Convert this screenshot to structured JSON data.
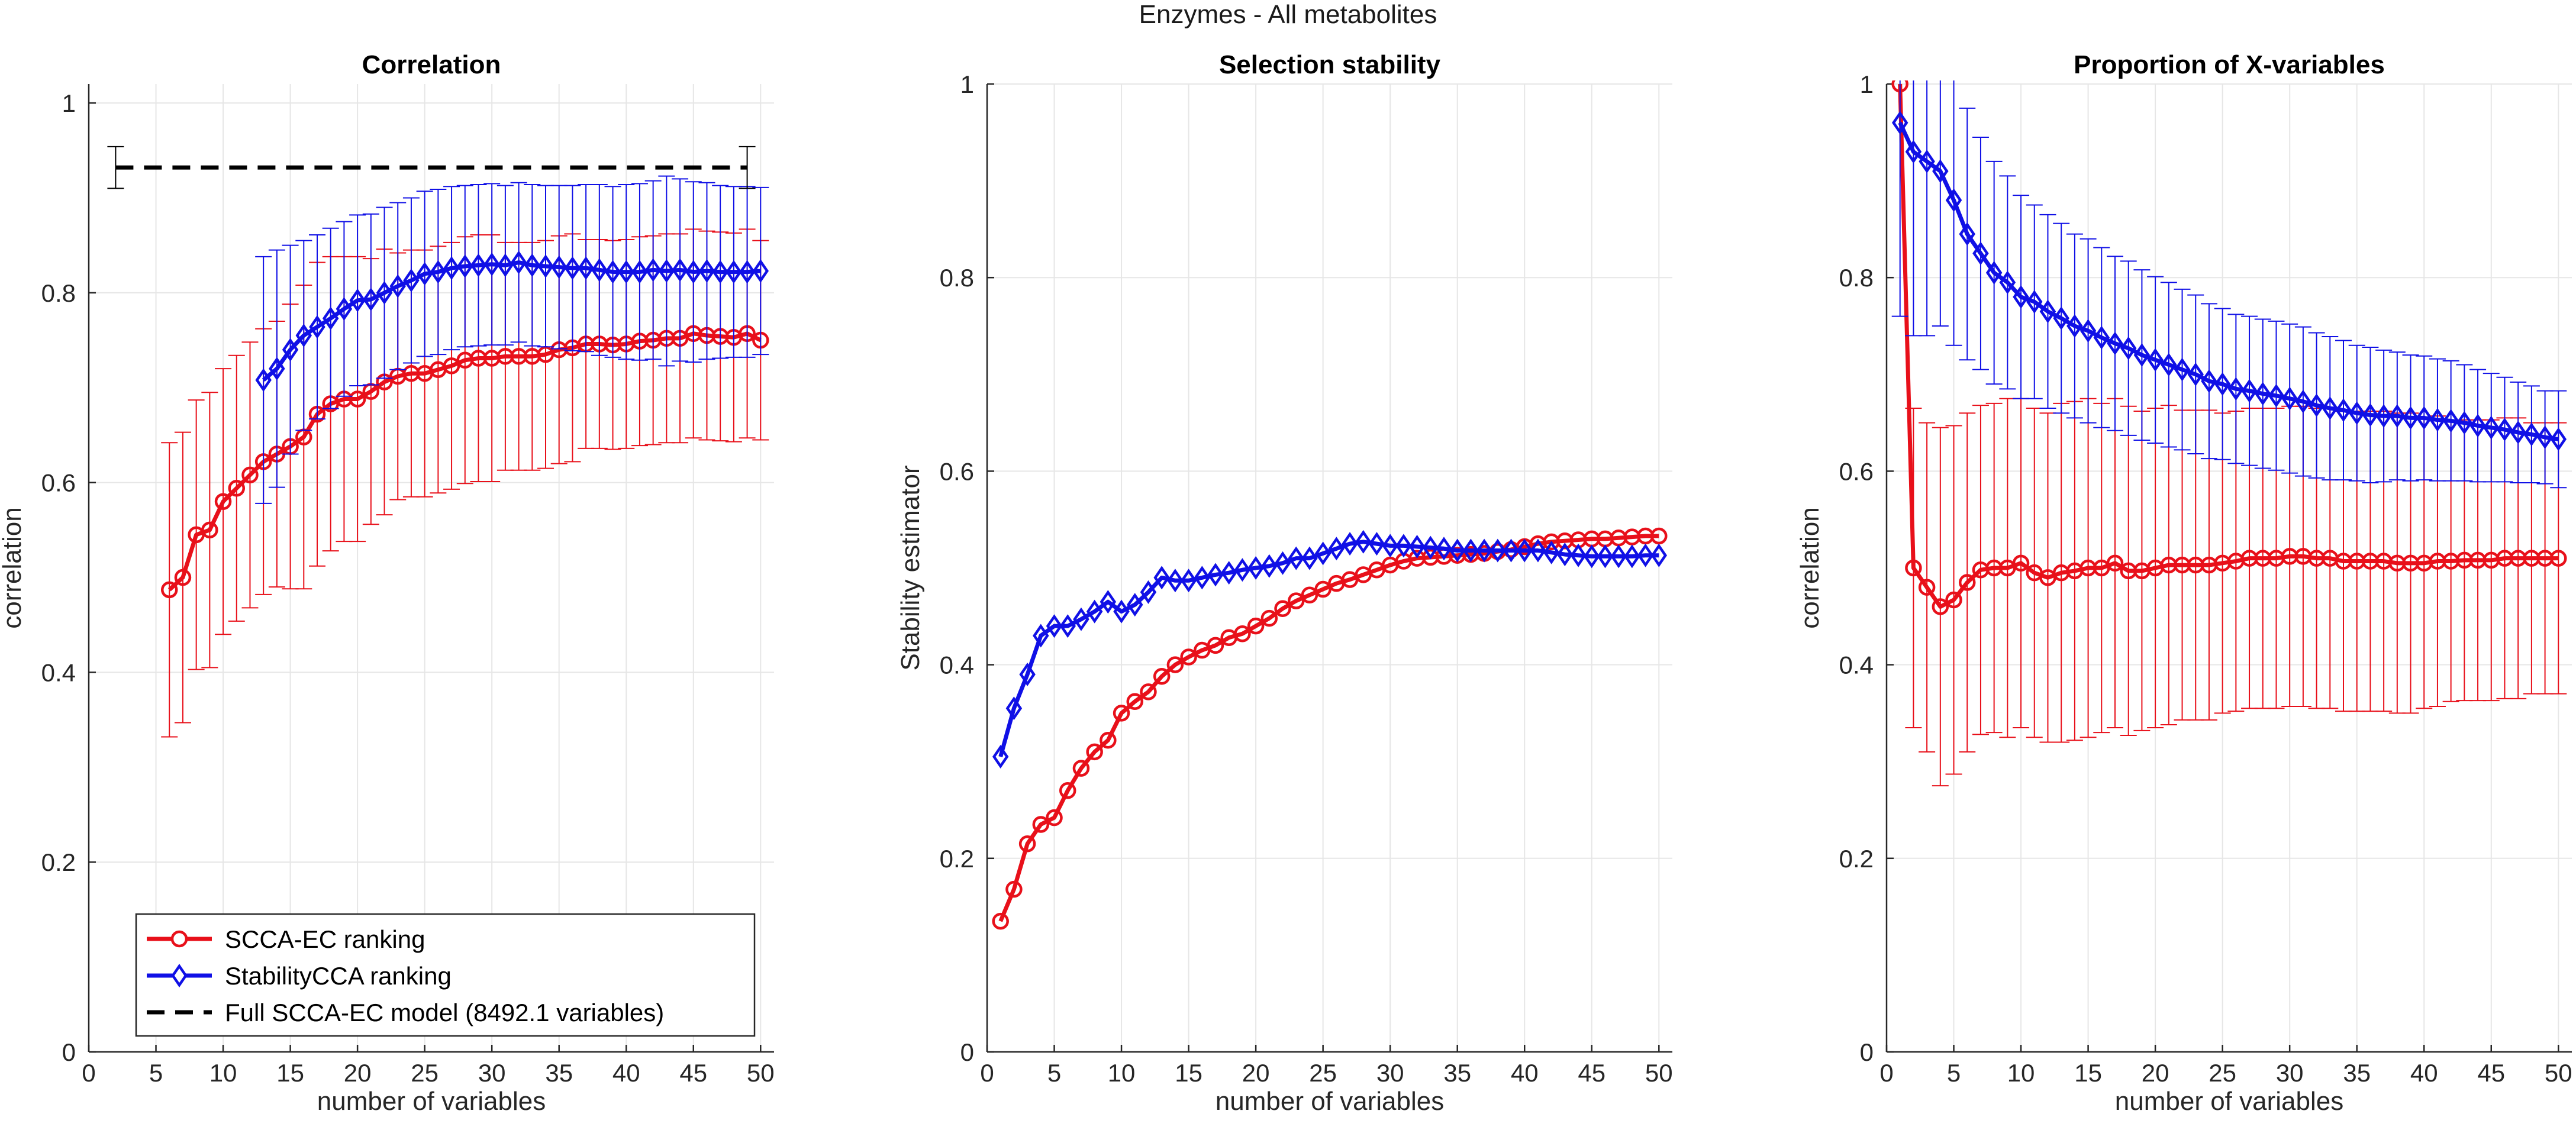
{
  "figure": {
    "title": "Enzymes - All metabolites"
  },
  "colors": {
    "red": "#e8101a",
    "blue": "#1010e6",
    "black": "#000000",
    "grid": "#e6e6e6",
    "axis": "#262626"
  },
  "chart_data": [
    {
      "type": "line",
      "title": "Correlation",
      "xlabel": "number of variables",
      "ylabel": "correlation",
      "xlim": [
        0,
        51
      ],
      "ylim": [
        0,
        1.02
      ],
      "xticks": [
        0,
        5,
        10,
        15,
        20,
        25,
        30,
        35,
        40,
        45,
        50
      ],
      "xtick_labels": [
        "0",
        "5",
        "10",
        "15",
        "20",
        "25",
        "30",
        "35",
        "40",
        "45",
        "50"
      ],
      "yticks": [
        0,
        0.2,
        0.4,
        0.6,
        0.8,
        1
      ],
      "ytick_labels": [
        "0",
        "0.2",
        "0.4",
        "0.6",
        "0.8",
        "1"
      ],
      "grid": true,
      "legend": {
        "location": "bottom-left",
        "entries": [
          "SCCA-EC ranking",
          "StabilityCCA ranking",
          "Full SCCA-EC model (8492.1 variables)"
        ]
      },
      "series": [
        {
          "name": "SCCA-EC ranking",
          "color": "#e8101a",
          "marker": "circle",
          "x": [
            6,
            7,
            8,
            9,
            10,
            11,
            12,
            13,
            14,
            15,
            16,
            17,
            18,
            19,
            20,
            21,
            22,
            23,
            24,
            25,
            26,
            27,
            28,
            29,
            30,
            31,
            32,
            33,
            34,
            35,
            36,
            37,
            38,
            39,
            40,
            41,
            42,
            43,
            44,
            45,
            46,
            47,
            48,
            49,
            50
          ],
          "y": [
            0.487,
            0.5,
            0.545,
            0.55,
            0.58,
            0.594,
            0.608,
            0.622,
            0.63,
            0.638,
            0.648,
            0.672,
            0.683,
            0.688,
            0.688,
            0.696,
            0.706,
            0.712,
            0.715,
            0.715,
            0.719,
            0.723,
            0.729,
            0.731,
            0.731,
            0.733,
            0.733,
            0.733,
            0.735,
            0.74,
            0.742,
            0.746,
            0.746,
            0.745,
            0.746,
            0.749,
            0.75,
            0.752,
            0.752,
            0.757,
            0.755,
            0.754,
            0.753,
            0.757,
            0.75
          ],
          "err": [
            0.155,
            0.153,
            0.142,
            0.145,
            0.14,
            0.14,
            0.14,
            0.14,
            0.14,
            0.15,
            0.16,
            0.16,
            0.155,
            0.15,
            0.15,
            0.14,
            0.14,
            0.13,
            0.13,
            0.13,
            0.13,
            0.13,
            0.13,
            0.13,
            0.13,
            0.12,
            0.12,
            0.12,
            0.12,
            0.12,
            0.12,
            0.11,
            0.11,
            0.11,
            0.11,
            0.11,
            0.11,
            0.11,
            0.11,
            0.11,
            0.11,
            0.11,
            0.11,
            0.11,
            0.105
          ]
        },
        {
          "name": "StabilityCCA ranking",
          "color": "#1010e6",
          "marker": "diamond",
          "x": [
            13,
            14,
            15,
            16,
            17,
            18,
            19,
            20,
            21,
            22,
            23,
            24,
            25,
            26,
            27,
            28,
            29,
            30,
            31,
            32,
            33,
            34,
            35,
            36,
            37,
            38,
            39,
            40,
            41,
            42,
            43,
            44,
            45,
            46,
            47,
            48,
            49,
            50
          ],
          "y": [
            0.708,
            0.72,
            0.74,
            0.755,
            0.764,
            0.773,
            0.783,
            0.792,
            0.793,
            0.8,
            0.807,
            0.813,
            0.82,
            0.822,
            0.826,
            0.828,
            0.829,
            0.83,
            0.829,
            0.832,
            0.829,
            0.828,
            0.827,
            0.826,
            0.826,
            0.824,
            0.822,
            0.822,
            0.822,
            0.824,
            0.823,
            0.824,
            0.822,
            0.823,
            0.822,
            0.822,
            0.822,
            0.823
          ],
          "err": [
            0.13,
            0.125,
            0.11,
            0.1,
            0.097,
            0.095,
            0.092,
            0.09,
            0.09,
            0.09,
            0.088,
            0.087,
            0.087,
            0.087,
            0.086,
            0.085,
            0.085,
            0.085,
            0.084,
            0.084,
            0.085,
            0.085,
            0.086,
            0.087,
            0.088,
            0.09,
            0.09,
            0.092,
            0.093,
            0.094,
            0.1,
            0.096,
            0.095,
            0.093,
            0.091,
            0.09,
            0.09,
            0.088
          ]
        },
        {
          "name": "Full SCCA-EC model (8492.1 variables)",
          "color": "#000000",
          "style": "dashed",
          "x": [
            2,
            49
          ],
          "y": [
            0.932,
            0.932
          ],
          "errorbars": [
            {
              "x": 2,
              "y": 0.932,
              "err": 0.022
            },
            {
              "x": 49,
              "y": 0.932,
              "err": 0.022
            }
          ]
        }
      ]
    },
    {
      "type": "line",
      "title": "Selection stability",
      "xlabel": "number of variables",
      "ylabel": "Stability estimator",
      "xlim": [
        0,
        51
      ],
      "ylim": [
        0,
        1
      ],
      "xticks": [
        0,
        5,
        10,
        15,
        20,
        25,
        30,
        35,
        40,
        45,
        50
      ],
      "xtick_labels": [
        "0",
        "5",
        "10",
        "15",
        "20",
        "25",
        "30",
        "35",
        "40",
        "45",
        "50"
      ],
      "yticks": [
        0,
        0.2,
        0.4,
        0.6,
        0.8,
        1
      ],
      "ytick_labels": [
        "0",
        "0.2",
        "0.4",
        "0.6",
        "0.8",
        "1"
      ],
      "grid": true,
      "series": [
        {
          "name": "SCCA-EC ranking",
          "color": "#e8101a",
          "marker": "circle",
          "x": [
            1,
            2,
            3,
            4,
            5,
            6,
            7,
            8,
            9,
            10,
            11,
            12,
            13,
            14,
            15,
            16,
            17,
            18,
            19,
            20,
            21,
            22,
            23,
            24,
            25,
            26,
            27,
            28,
            29,
            30,
            31,
            32,
            33,
            34,
            35,
            36,
            37,
            38,
            39,
            40,
            41,
            42,
            43,
            44,
            45,
            46,
            47,
            48,
            49,
            50
          ],
          "y": [
            0.135,
            0.168,
            0.215,
            0.235,
            0.242,
            0.27,
            0.293,
            0.31,
            0.322,
            0.35,
            0.362,
            0.372,
            0.388,
            0.4,
            0.408,
            0.415,
            0.42,
            0.428,
            0.432,
            0.44,
            0.448,
            0.458,
            0.466,
            0.472,
            0.478,
            0.484,
            0.488,
            0.493,
            0.498,
            0.503,
            0.507,
            0.51,
            0.511,
            0.512,
            0.513,
            0.514,
            0.515,
            0.517,
            0.519,
            0.522,
            0.525,
            0.527,
            0.528,
            0.529,
            0.53,
            0.53,
            0.531,
            0.532,
            0.533,
            0.533
          ]
        },
        {
          "name": "StabilityCCA ranking",
          "color": "#1010e6",
          "marker": "diamond",
          "x": [
            1,
            2,
            3,
            4,
            5,
            6,
            7,
            8,
            9,
            10,
            11,
            12,
            13,
            14,
            15,
            16,
            17,
            18,
            19,
            20,
            21,
            22,
            23,
            24,
            25,
            26,
            27,
            28,
            29,
            30,
            31,
            32,
            33,
            34,
            35,
            36,
            37,
            38,
            39,
            40,
            41,
            42,
            43,
            44,
            45,
            46,
            47,
            48,
            49,
            50
          ],
          "y": [
            0.305,
            0.355,
            0.39,
            0.43,
            0.44,
            0.44,
            0.447,
            0.455,
            0.465,
            0.455,
            0.462,
            0.475,
            0.49,
            0.487,
            0.487,
            0.49,
            0.493,
            0.495,
            0.498,
            0.5,
            0.502,
            0.505,
            0.51,
            0.51,
            0.515,
            0.52,
            0.525,
            0.527,
            0.525,
            0.523,
            0.523,
            0.522,
            0.521,
            0.52,
            0.518,
            0.518,
            0.518,
            0.518,
            0.518,
            0.518,
            0.518,
            0.516,
            0.514,
            0.513,
            0.512,
            0.512,
            0.512,
            0.512,
            0.513,
            0.513
          ]
        }
      ]
    },
    {
      "type": "line",
      "title": "Proportion of X-variables",
      "xlabel": "number of variables",
      "ylabel": "correlation",
      "xlim": [
        0,
        51
      ],
      "ylim": [
        0,
        1
      ],
      "xticks": [
        0,
        5,
        10,
        15,
        20,
        25,
        30,
        35,
        40,
        45,
        50
      ],
      "xtick_labels": [
        "0",
        "5",
        "10",
        "15",
        "20",
        "25",
        "30",
        "35",
        "40",
        "45",
        "50"
      ],
      "yticks": [
        0,
        0.2,
        0.4,
        0.6,
        0.8,
        1
      ],
      "ytick_labels": [
        "0",
        "0.2",
        "0.4",
        "0.6",
        "0.8",
        "1"
      ],
      "grid": true,
      "series": [
        {
          "name": "SCCA-EC ranking",
          "color": "#e8101a",
          "marker": "circle",
          "x": [
            1,
            2,
            3,
            4,
            5,
            6,
            7,
            8,
            9,
            10,
            11,
            12,
            13,
            14,
            15,
            16,
            17,
            18,
            19,
            20,
            21,
            22,
            23,
            24,
            25,
            26,
            27,
            28,
            29,
            30,
            31,
            32,
            33,
            34,
            35,
            36,
            37,
            38,
            39,
            40,
            41,
            42,
            43,
            44,
            45,
            46,
            47,
            48,
            49,
            50
          ],
          "y": [
            1.0,
            0.5,
            0.48,
            0.46,
            0.467,
            0.485,
            0.498,
            0.5,
            0.5,
            0.505,
            0.495,
            0.49,
            0.495,
            0.497,
            0.5,
            0.5,
            0.505,
            0.497,
            0.497,
            0.5,
            0.503,
            0.503,
            0.503,
            0.503,
            0.505,
            0.507,
            0.51,
            0.51,
            0.51,
            0.512,
            0.512,
            0.51,
            0.51,
            0.507,
            0.507,
            0.507,
            0.507,
            0.505,
            0.505,
            0.505,
            0.507,
            0.507,
            0.508,
            0.508,
            0.508,
            0.51,
            0.51,
            0.51,
            0.51,
            0.51
          ],
          "err": [
            0.0,
            0.165,
            0.17,
            0.185,
            0.18,
            0.175,
            0.17,
            0.17,
            0.175,
            0.17,
            0.17,
            0.17,
            0.175,
            0.175,
            0.175,
            0.17,
            0.17,
            0.17,
            0.165,
            0.165,
            0.165,
            0.16,
            0.16,
            0.16,
            0.155,
            0.155,
            0.155,
            0.155,
            0.155,
            0.155,
            0.155,
            0.155,
            0.155,
            0.155,
            0.155,
            0.155,
            0.155,
            0.155,
            0.155,
            0.15,
            0.15,
            0.145,
            0.145,
            0.145,
            0.145,
            0.145,
            0.145,
            0.14,
            0.14,
            0.14
          ]
        },
        {
          "name": "StabilityCCA ranking",
          "color": "#1010e6",
          "marker": "diamond",
          "x": [
            1,
            2,
            3,
            4,
            5,
            6,
            7,
            8,
            9,
            10,
            11,
            12,
            13,
            14,
            15,
            16,
            17,
            18,
            19,
            20,
            21,
            22,
            23,
            24,
            25,
            26,
            27,
            28,
            29,
            30,
            31,
            32,
            33,
            34,
            35,
            36,
            37,
            38,
            39,
            40,
            41,
            42,
            43,
            44,
            45,
            46,
            47,
            48,
            49,
            50
          ],
          "y": [
            0.96,
            0.93,
            0.92,
            0.91,
            0.88,
            0.845,
            0.825,
            0.805,
            0.795,
            0.78,
            0.775,
            0.765,
            0.758,
            0.75,
            0.745,
            0.738,
            0.732,
            0.727,
            0.72,
            0.715,
            0.71,
            0.705,
            0.7,
            0.693,
            0.69,
            0.685,
            0.683,
            0.68,
            0.678,
            0.675,
            0.672,
            0.668,
            0.665,
            0.663,
            0.66,
            0.658,
            0.657,
            0.657,
            0.655,
            0.655,
            0.653,
            0.652,
            0.65,
            0.647,
            0.645,
            0.643,
            0.64,
            0.638,
            0.635,
            0.633
          ],
          "err": [
            0.2,
            0.19,
            0.18,
            0.16,
            0.15,
            0.13,
            0.12,
            0.115,
            0.11,
            0.105,
            0.1,
            0.1,
            0.098,
            0.095,
            0.095,
            0.093,
            0.09,
            0.09,
            0.088,
            0.086,
            0.085,
            0.083,
            0.082,
            0.08,
            0.078,
            0.077,
            0.077,
            0.077,
            0.077,
            0.077,
            0.077,
            0.075,
            0.074,
            0.072,
            0.07,
            0.07,
            0.068,
            0.066,
            0.065,
            0.064,
            0.063,
            0.062,
            0.06,
            0.058,
            0.056,
            0.054,
            0.052,
            0.05,
            0.048,
            0.05
          ]
        }
      ]
    }
  ]
}
